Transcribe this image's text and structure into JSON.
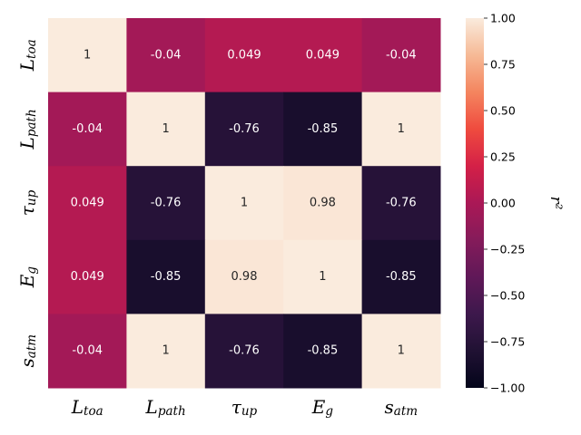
{
  "chart_data": {
    "type": "heatmap",
    "title": "",
    "row_labels": [
      {
        "main": "L",
        "sub": "toa"
      },
      {
        "main": "L",
        "sub": "path"
      },
      {
        "main": "τ",
        "sub": "up"
      },
      {
        "main": "E",
        "sub": "g"
      },
      {
        "main": "s",
        "sub": "atm"
      }
    ],
    "col_labels": [
      {
        "main": "L",
        "sub": "toa"
      },
      {
        "main": "L",
        "sub": "path"
      },
      {
        "main": "τ",
        "sub": "up"
      },
      {
        "main": "E",
        "sub": "g"
      },
      {
        "main": "s",
        "sub": "atm"
      }
    ],
    "values": [
      [
        1,
        -0.04,
        0.049,
        0.049,
        -0.04
      ],
      [
        -0.04,
        1,
        -0.76,
        -0.85,
        1
      ],
      [
        0.049,
        -0.76,
        1,
        0.98,
        -0.76
      ],
      [
        0.049,
        -0.85,
        0.98,
        1,
        -0.85
      ],
      [
        -0.04,
        1,
        -0.76,
        -0.85,
        1
      ]
    ],
    "value_labels": [
      [
        "1",
        "-0.04",
        "0.049",
        "0.049",
        "-0.04"
      ],
      [
        "-0.04",
        "1",
        "-0.76",
        "-0.85",
        "1"
      ],
      [
        "0.049",
        "-0.76",
        "1",
        "0.98",
        "-0.76"
      ],
      [
        "0.049",
        "-0.85",
        "0.98",
        "1",
        "-0.85"
      ],
      [
        "-0.04",
        "1",
        "-0.76",
        "-0.85",
        "1"
      ]
    ],
    "colorbar": {
      "label": "r²",
      "vmin": -1.0,
      "vmax": 1.0,
      "ticks": [
        1.0,
        0.75,
        0.5,
        0.25,
        0.0,
        -0.25,
        -0.5,
        -0.75,
        -1.0
      ],
      "tick_labels": [
        "1.00",
        "0.75",
        "0.50",
        "0.25",
        "0.00",
        "−0.25",
        "−0.50",
        "−0.75",
        "−1.00"
      ],
      "colormap": "rocket"
    }
  }
}
